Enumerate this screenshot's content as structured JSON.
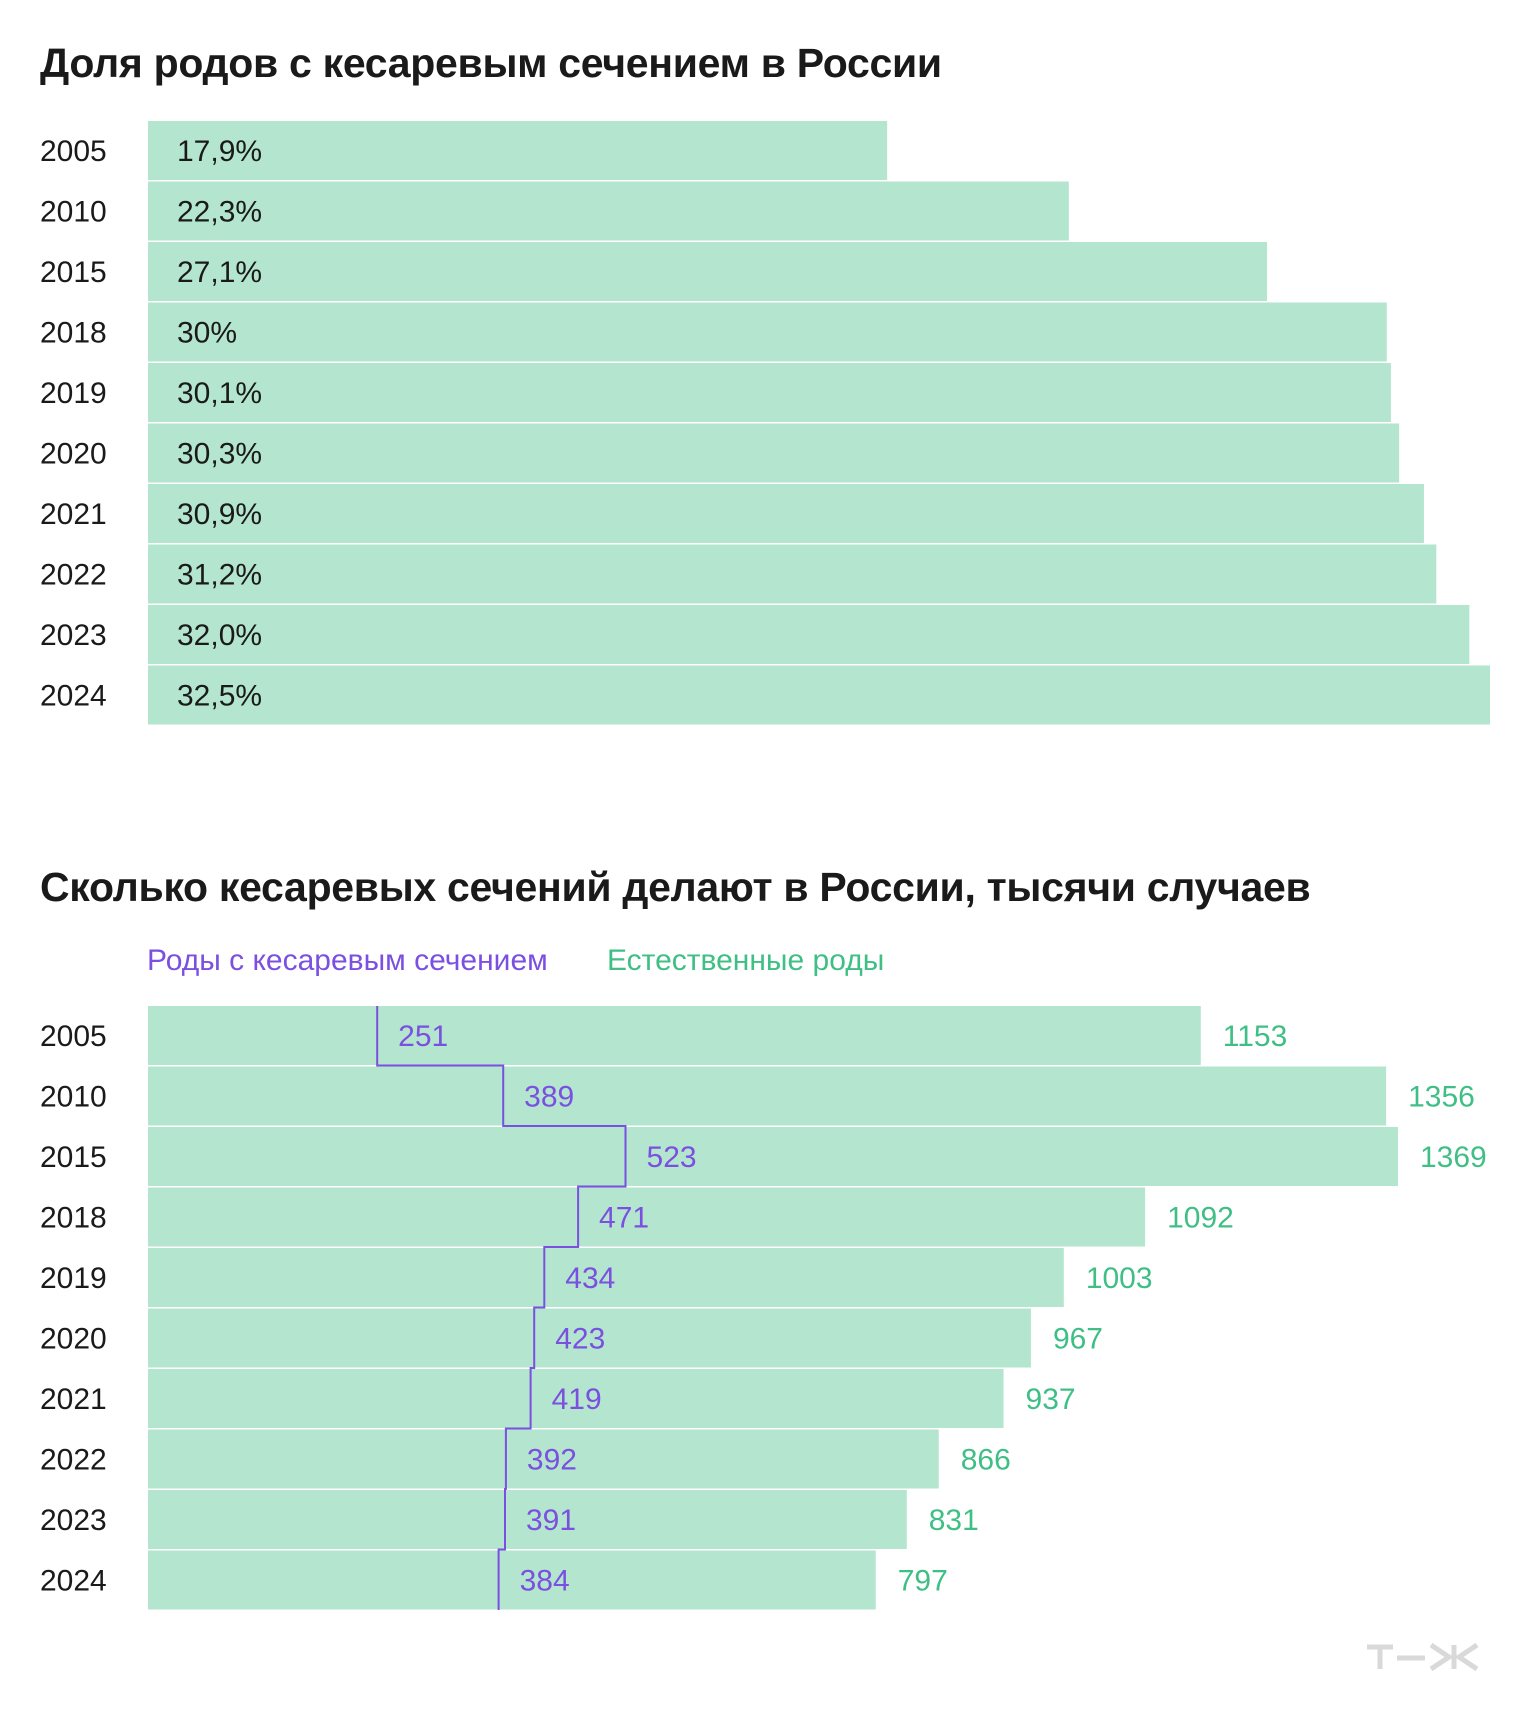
{
  "chart_data": [
    {
      "type": "bar",
      "orientation": "horizontal",
      "title": "Доля родов с кесаревым сечением в России",
      "categories": [
        "2005",
        "2010",
        "2015",
        "2018",
        "2019",
        "2020",
        "2021",
        "2022",
        "2023",
        "2024"
      ],
      "values": [
        17.9,
        22.3,
        27.1,
        30,
        30.1,
        30.3,
        30.9,
        31.2,
        32.0,
        32.5
      ],
      "value_labels": [
        "17,9%",
        "22,3%",
        "27,1%",
        "30%",
        "30,1%",
        "30,3%",
        "30,9%",
        "31,2%",
        "32,0%",
        "32,5%"
      ],
      "unit": "%",
      "xlim": [
        0,
        32.5
      ],
      "bar_color": "#b3e5cf",
      "grid": false
    },
    {
      "type": "bar",
      "orientation": "horizontal",
      "title": "Сколько кесаревых сечений делают в России, тысячи случаев",
      "categories": [
        "2005",
        "2010",
        "2015",
        "2018",
        "2019",
        "2020",
        "2021",
        "2022",
        "2023",
        "2024"
      ],
      "series": [
        {
          "name": "Роды с кесаревым сечением",
          "values": [
            251,
            389,
            523,
            471,
            434,
            423,
            419,
            392,
            391,
            384
          ],
          "color": "#7b4fe0",
          "style": "step line"
        },
        {
          "name": "Естественные роды",
          "values": [
            1153,
            1356,
            1369,
            1092,
            1003,
            967,
            937,
            866,
            831,
            797
          ],
          "color": "#3fbf85",
          "style": "bar"
        }
      ],
      "xlim": [
        0,
        1369
      ],
      "bar_color": "#b3e5cf",
      "legend": "top-left",
      "grid": false
    }
  ],
  "logo_text": "т—ж"
}
